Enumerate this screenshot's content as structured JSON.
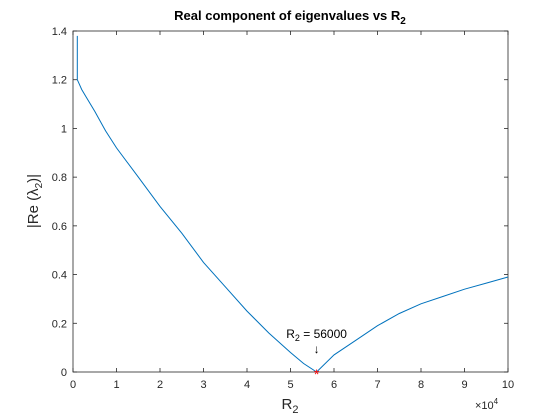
{
  "chart_data": {
    "type": "line",
    "title": {
      "main": "Real component of eigenvalues vs R",
      "sub": "2"
    },
    "xlabel": {
      "main": "R",
      "sub": "2"
    },
    "ylabel": {
      "pre": "|Re (",
      "lambda": "λ",
      "sub": "2",
      "post": ")|"
    },
    "xlim": [
      0,
      100000
    ],
    "ylim": [
      0,
      1.4
    ],
    "x_exponent_label": {
      "base": "×10",
      "exp": "4"
    },
    "x_ticks": [
      0,
      10000,
      20000,
      30000,
      40000,
      50000,
      60000,
      70000,
      80000,
      90000,
      100000
    ],
    "x_tick_labels": [
      "0",
      "1",
      "2",
      "3",
      "4",
      "5",
      "6",
      "7",
      "8",
      "9",
      "10"
    ],
    "y_ticks": [
      0,
      0.2,
      0.4,
      0.6,
      0.8,
      1.0,
      1.2,
      1.4
    ],
    "y_tick_labels": [
      "0",
      "0.2",
      "0.4",
      "0.6",
      "0.8",
      "1",
      "1.2",
      "1.4"
    ],
    "grid": false,
    "series": [
      {
        "color": "#0072BD",
        "x": [
          1000,
          1000,
          1500,
          2000,
          3000,
          5000,
          7500,
          10000,
          15000,
          20000,
          25000,
          30000,
          35000,
          40000,
          45000,
          50000,
          53000,
          56000,
          60000,
          65000,
          70000,
          75000,
          80000,
          85000,
          90000,
          95000,
          100000
        ],
        "y": [
          1.38,
          1.2,
          1.18,
          1.16,
          1.13,
          1.07,
          0.99,
          0.92,
          0.8,
          0.68,
          0.57,
          0.45,
          0.35,
          0.25,
          0.16,
          0.08,
          0.035,
          0.0,
          0.07,
          0.13,
          0.19,
          0.24,
          0.28,
          0.31,
          0.34,
          0.365,
          0.39
        ]
      }
    ],
    "marker": {
      "x": 56000,
      "y": 0,
      "symbol": "*",
      "color": "#FF0000"
    },
    "annotation": {
      "x": 56000,
      "y": 0,
      "pre": "R",
      "sub": "2",
      "post": " = 56000",
      "arrow": "↓"
    }
  }
}
